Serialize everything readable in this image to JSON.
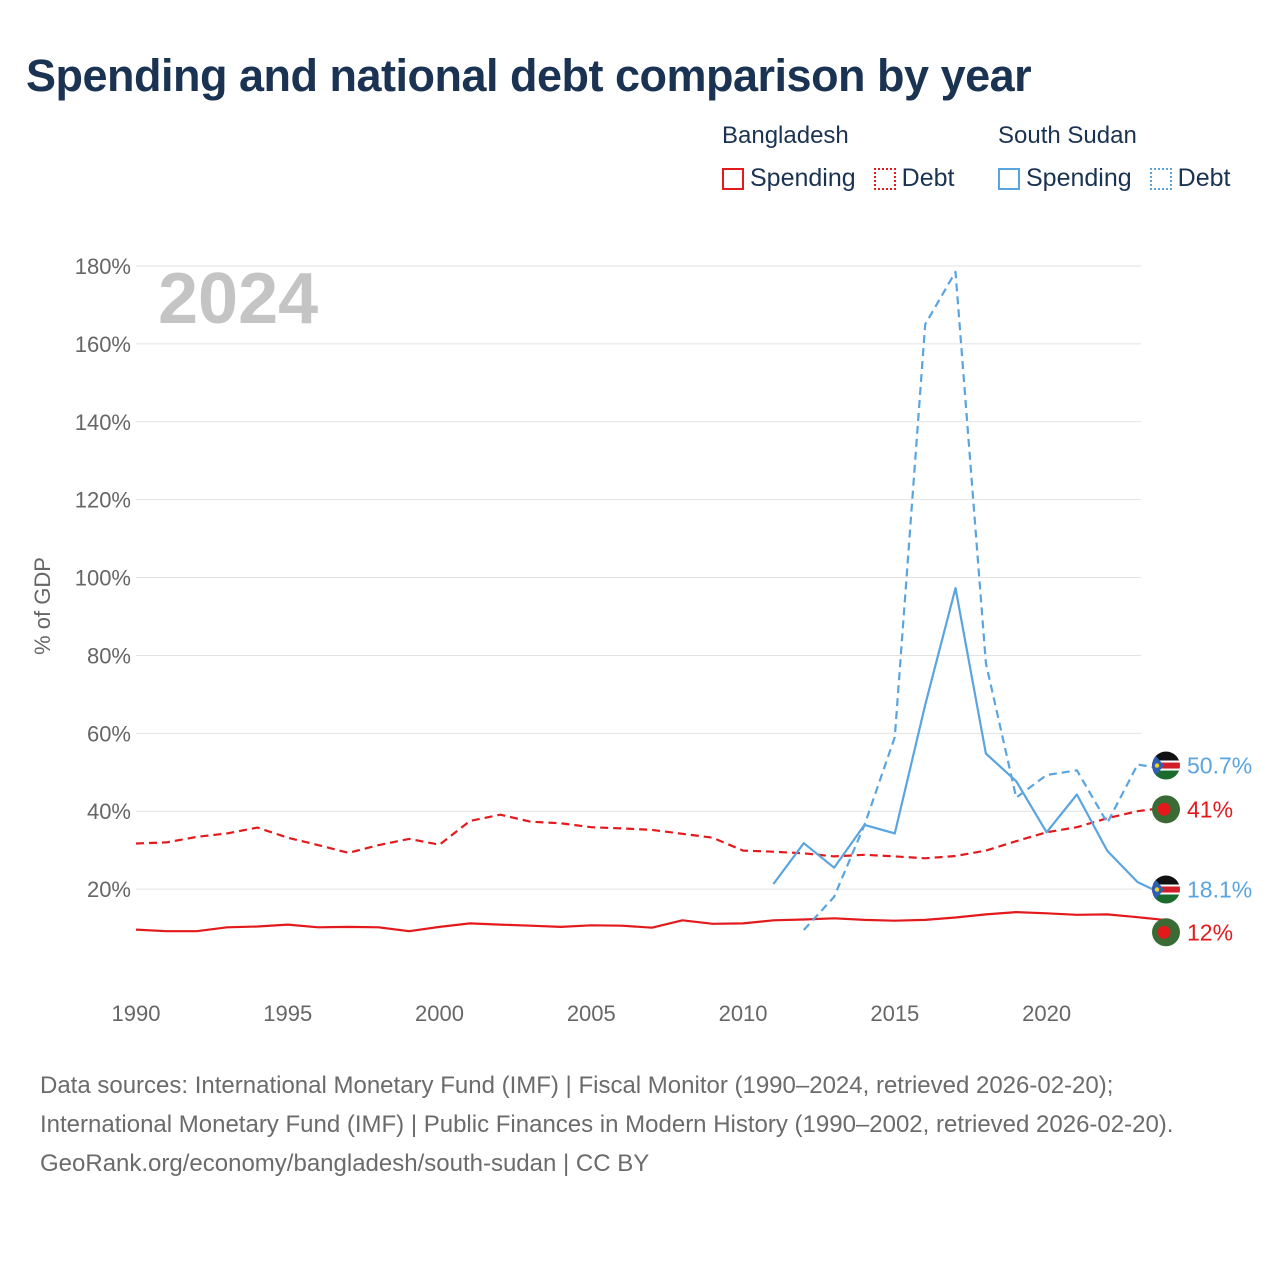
{
  "title": "Spending and national debt comparison by year",
  "legend": [
    {
      "country": "Bangladesh",
      "color": "#e3191c",
      "spending_label": "Spending",
      "debt_label": "Debt"
    },
    {
      "country": "South Sudan",
      "color": "#5aa4e0",
      "spending_label": "Spending",
      "debt_label": "Debt"
    }
  ],
  "chart_data": {
    "type": "line",
    "year_label": "2024",
    "ylabel": "% of GDP",
    "xlim": [
      1990,
      2024
    ],
    "ylim": [
      0,
      180
    ],
    "x_ticks": [
      1990,
      1995,
      2000,
      2005,
      2010,
      2015,
      2020
    ],
    "y_ticks": [
      20,
      40,
      60,
      80,
      100,
      120,
      140,
      160,
      180
    ],
    "y_tick_labels": [
      "20%",
      "40%",
      "60%",
      "80%",
      "100%",
      "120%",
      "140%",
      "160%",
      "180%"
    ],
    "grid": true,
    "series": [
      {
        "name": "Bangladesh Debt",
        "color": "#e3191c",
        "style": "dashed",
        "x": [
          1990,
          1991,
          1992,
          1993,
          1994,
          1995,
          1996,
          1997,
          1998,
          1999,
          2000,
          2001,
          2002,
          2003,
          2004,
          2005,
          2006,
          2007,
          2008,
          2009,
          2010,
          2011,
          2012,
          2013,
          2014,
          2015,
          2016,
          2017,
          2018,
          2019,
          2020,
          2021,
          2022,
          2023,
          2024
        ],
        "values": [
          31.7,
          32.0,
          33.4,
          34.3,
          35.8,
          33.2,
          31.3,
          29.3,
          31.3,
          32.9,
          31.4,
          37.5,
          39.1,
          37.3,
          36.9,
          35.9,
          35.6,
          35.2,
          34.2,
          33.2,
          29.9,
          29.6,
          29.2,
          28.4,
          28.8,
          28.4,
          27.9,
          28.5,
          29.9,
          32.3,
          34.6,
          35.9,
          38.2,
          40.0,
          41.0
        ],
        "end_label": "41%"
      },
      {
        "name": "Bangladesh Spending",
        "color": "#e3191c",
        "style": "solid",
        "x": [
          1990,
          1991,
          1992,
          1993,
          1994,
          1995,
          1996,
          1997,
          1998,
          1999,
          2000,
          2001,
          2002,
          2003,
          2004,
          2005,
          2006,
          2007,
          2008,
          2009,
          2010,
          2011,
          2012,
          2013,
          2014,
          2015,
          2016,
          2017,
          2018,
          2019,
          2020,
          2021,
          2022,
          2023,
          2024
        ],
        "values": [
          9.6,
          9.2,
          9.2,
          10.2,
          10.4,
          10.9,
          10.2,
          10.3,
          10.2,
          9.2,
          10.3,
          11.2,
          10.9,
          10.6,
          10.3,
          10.7,
          10.6,
          10.1,
          12.0,
          11.1,
          11.2,
          12.0,
          12.2,
          12.5,
          12.1,
          11.9,
          12.1,
          12.7,
          13.5,
          14.1,
          13.8,
          13.4,
          13.5,
          12.8,
          12.0
        ],
        "end_label": "12%"
      },
      {
        "name": "South Sudan Debt",
        "color": "#5aa4e0",
        "style": "dashed",
        "x": [
          2012,
          2013,
          2014,
          2015,
          2016,
          2017,
          2018,
          2019,
          2020,
          2021,
          2022,
          2023,
          2024
        ],
        "values": [
          9.5,
          18.0,
          36.5,
          59.0,
          165.0,
          178.5,
          78.0,
          43.5,
          49.3,
          50.5,
          37.0,
          52.0,
          50.7
        ],
        "end_label": "50.7%"
      },
      {
        "name": "South Sudan Spending",
        "color": "#5aa4e0",
        "style": "solid",
        "x": [
          2011,
          2012,
          2013,
          2014,
          2015,
          2016,
          2017,
          2018,
          2019,
          2020,
          2021,
          2022,
          2023,
          2024
        ],
        "values": [
          21.3,
          31.8,
          25.5,
          36.5,
          34.3,
          67.3,
          97.3,
          54.8,
          47.7,
          34.6,
          44.3,
          29.8,
          21.8,
          18.1
        ],
        "end_label": "18.1%"
      }
    ]
  },
  "footer": {
    "sources": "Data sources: International Monetary Fund (IMF) | Fiscal Monitor (1990–2024, retrieved 2026-02-20); International Monetary Fund (IMF) | Public Finances in Modern History (1990–2002, retrieved 2026-02-20).",
    "attribution": "GeoRank.org/economy/bangladesh/south-sudan | CC BY"
  }
}
